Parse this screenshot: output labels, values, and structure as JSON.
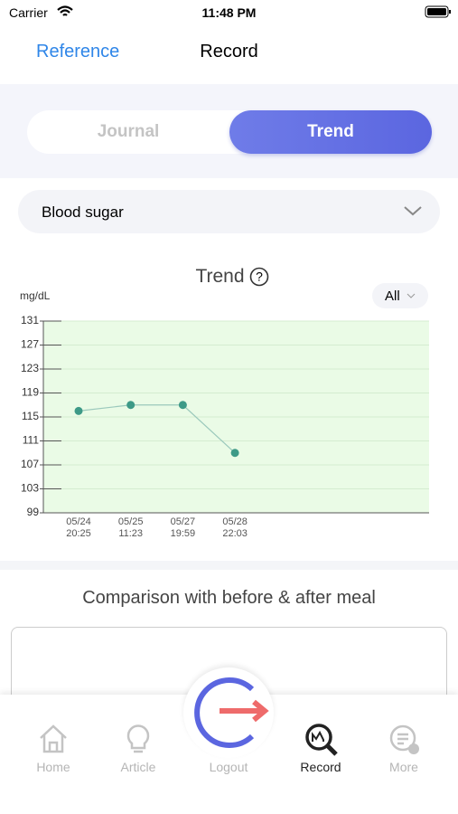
{
  "status_bar": {
    "carrier": "Carrier",
    "time": "11:48 PM"
  },
  "nav": {
    "back": "Reference",
    "title": "Record"
  },
  "tabs": [
    "Journal",
    "Trend"
  ],
  "selector": "Blood sugar",
  "chart_data": {
    "type": "line",
    "title": "Trend",
    "y_label": "mg/dL",
    "filter": "All",
    "categories": [
      "05/24 20:25",
      "05/25 11:23",
      "05/27 19:59",
      "05/28 22:03"
    ],
    "series": [
      {
        "color": "#3d9a87",
        "values": [
          116,
          117,
          117,
          109
        ]
      }
    ],
    "ylim": [
      99,
      131
    ],
    "yticks": [
      99,
      103,
      107,
      111,
      115,
      119,
      123,
      127,
      131
    ],
    "grid": true
  },
  "section_title": "Comparison with before & after meal",
  "tab_bar": [
    "Home",
    "Article",
    "Logout",
    "Record",
    "More"
  ]
}
